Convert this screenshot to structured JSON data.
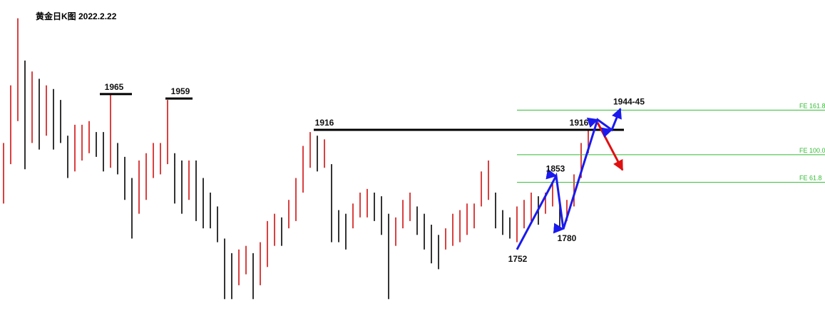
{
  "chart_data": {
    "type": "ohlc",
    "title": "黄金日K图 2022.2.22",
    "ylim": [
      1654,
      2094
    ],
    "up_color": "#d01010",
    "down_color": "#000000",
    "high": [
      1898,
      1977,
      2069,
      2011,
      1996,
      1986,
      1977,
      1972,
      1957,
      1908,
      1923,
      1923,
      1928,
      1913,
      1913,
      1965,
      1898,
      1879,
      1850,
      1874,
      1884,
      1898,
      1898,
      1957,
      1884,
      1874,
      1874,
      1874,
      1850,
      1830,
      1811,
      1767,
      1747,
      1752,
      1757,
      1747,
      1762,
      1791,
      1801,
      1796,
      1820,
      1850,
      1894,
      1913,
      1908,
      1903,
      1869,
      1806,
      1801,
      1815,
      1830,
      1835,
      1830,
      1825,
      1801,
      1796,
      1820,
      1830,
      1811,
      1801,
      1786,
      1772,
      1781,
      1801,
      1806,
      1815,
      1815,
      1859,
      1874,
      1830,
      1806,
      1796,
      1811,
      1820,
      1830,
      1825,
      1830,
      1845,
      1815,
      1820,
      1855,
      1898,
      1916
    ],
    "low": [
      1815,
      1869,
      1928,
      1862,
      1898,
      1889,
      1908,
      1889,
      1898,
      1850,
      1859,
      1874,
      1884,
      1879,
      1859,
      1864,
      1855,
      1820,
      1767,
      1801,
      1820,
      1850,
      1855,
      1869,
      1815,
      1801,
      1820,
      1791,
      1781,
      1781,
      1762,
      1684,
      1684,
      1703,
      1718,
      1684,
      1703,
      1728,
      1757,
      1757,
      1781,
      1791,
      1830,
      1864,
      1859,
      1864,
      1762,
      1762,
      1752,
      1781,
      1796,
      1796,
      1791,
      1772,
      1684,
      1757,
      1781,
      1791,
      1772,
      1752,
      1733,
      1725,
      1752,
      1757,
      1762,
      1772,
      1781,
      1811,
      1820,
      1781,
      1772,
      1767,
      1762,
      1781,
      1791,
      1786,
      1801,
      1811,
      1783,
      1791,
      1811,
      1850,
      1884
    ],
    "marked_levels": [
      {
        "value": 1965,
        "from": 13.5,
        "to": 18
      },
      {
        "value": 1959,
        "from": 22.7,
        "to": 26.5
      },
      {
        "value": 1916,
        "from": 43.5,
        "to": 87
      }
    ],
    "fe_levels": [
      {
        "label": "FE 161.8",
        "value": 1943,
        "from": 72
      },
      {
        "label": "FE 100.0",
        "value": 1882,
        "from": 72
      },
      {
        "label": "FE 61.8",
        "value": 1844,
        "from": 72
      }
    ],
    "fe_color": "#33bb33",
    "wave": {
      "color": "#1a1aee",
      "points": [
        {
          "at": 72,
          "value": 1752
        },
        {
          "at": 77.5,
          "value": 1853
        },
        {
          "at": 78.5,
          "value": 1780
        },
        {
          "at": 83.3,
          "value": 1930
        },
        {
          "at": 85.3,
          "value": 1916
        },
        {
          "at": 86.5,
          "value": 1945
        }
      ]
    },
    "alt_path": {
      "color": "#e01010",
      "points": [
        {
          "at": 83.3,
          "value": 1926
        },
        {
          "at": 86.8,
          "value": 1861
        }
      ]
    },
    "labels": [
      {
        "text": "1965",
        "at": 15.5,
        "value": 1965,
        "placement": "above"
      },
      {
        "text": "1959",
        "at": 24.8,
        "value": 1959,
        "placement": "above"
      },
      {
        "text": "1916",
        "at": 45,
        "value": 1916,
        "placement": "above"
      },
      {
        "text": "1752",
        "at": 72.1,
        "value": 1752,
        "placement": "below"
      },
      {
        "text": "1853",
        "at": 77.4,
        "value": 1853,
        "placement": "above"
      },
      {
        "text": "1780",
        "at": 79,
        "value": 1780,
        "placement": "below"
      },
      {
        "text": "1916",
        "at": 80.7,
        "value": 1916,
        "placement": "above"
      },
      {
        "text": "1944-45",
        "at": 87.7,
        "value": 1945,
        "placement": "above"
      }
    ]
  }
}
